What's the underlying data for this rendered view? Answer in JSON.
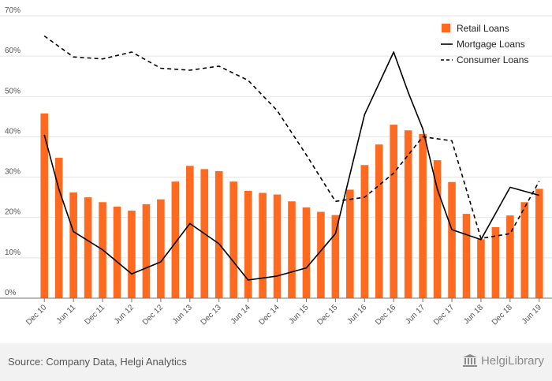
{
  "chart_data": {
    "type": "bar+line",
    "title": "",
    "xlabel": "",
    "ylabel": "",
    "ylim": [
      0,
      70
    ],
    "yticks": [
      "0%",
      "10%",
      "20%",
      "30%",
      "40%",
      "50%",
      "60%",
      "70%"
    ],
    "grid": true,
    "legend_position": "top-right",
    "x_tick_labels": [
      "Dec 10",
      "Jun 11",
      "Dec 11",
      "Jun 12",
      "Dec 12",
      "Jun 13",
      "Dec 13",
      "Jun 14",
      "Dec 14",
      "Jun 15",
      "Dec 15",
      "Jun 16",
      "Dec 16",
      "Jun 17",
      "Dec 17",
      "Jun 18",
      "Dec 18",
      "Jun 19"
    ],
    "series": [
      {
        "name": "Retail Loans",
        "kind": "bar",
        "color": "#ff6a21",
        "values": [
          45.8,
          34.8,
          26.2,
          25.0,
          23.8,
          22.7,
          21.7,
          23.3,
          24.5,
          28.9,
          32.8,
          32.0,
          31.5,
          28.9,
          26.6,
          26.1,
          25.7,
          24.0,
          22.5,
          21.4,
          20.6,
          26.9,
          33.0,
          38.1,
          43.0,
          41.6,
          40.7,
          34.2,
          28.8,
          20.9,
          14.6,
          17.6,
          20.5,
          23.8,
          27.1
        ]
      },
      {
        "name": "Mortgage Loans",
        "kind": "line",
        "color": "#000000",
        "dash": "solid",
        "points": [
          [
            0,
            40.5
          ],
          [
            1,
            27.0
          ],
          [
            2,
            16.5
          ],
          [
            4,
            12.0
          ],
          [
            6,
            6.0
          ],
          [
            8,
            9.0
          ],
          [
            10,
            18.5
          ],
          [
            12,
            13.5
          ],
          [
            14,
            4.5
          ],
          [
            16,
            5.5
          ],
          [
            18,
            7.5
          ],
          [
            20,
            16.0
          ],
          [
            22,
            45.5
          ],
          [
            24,
            61.0
          ],
          [
            25,
            51.0
          ],
          [
            26,
            42.0
          ],
          [
            27,
            27.0
          ],
          [
            28,
            17.0
          ],
          [
            30,
            14.5
          ],
          [
            32,
            27.5
          ],
          [
            34,
            25.5
          ]
        ]
      },
      {
        "name": "Consumer Loans",
        "kind": "line",
        "color": "#000000",
        "dash": "dashed",
        "points": [
          [
            0,
            65.0
          ],
          [
            2,
            59.8
          ],
          [
            4,
            59.3
          ],
          [
            6,
            61.0
          ],
          [
            8,
            57.0
          ],
          [
            10,
            56.5
          ],
          [
            12,
            57.5
          ],
          [
            14,
            54.0
          ],
          [
            16,
            46.5
          ],
          [
            18,
            35.5
          ],
          [
            20,
            24.0
          ],
          [
            22,
            25.0
          ],
          [
            24,
            31.0
          ],
          [
            26,
            40.0
          ],
          [
            28,
            39.0
          ],
          [
            30,
            14.8
          ],
          [
            32,
            16.0
          ],
          [
            34,
            29.0
          ]
        ]
      }
    ]
  },
  "footer": {
    "source": "Source: Company Data, Helgi Analytics",
    "brand": "HelgiLibrary"
  }
}
